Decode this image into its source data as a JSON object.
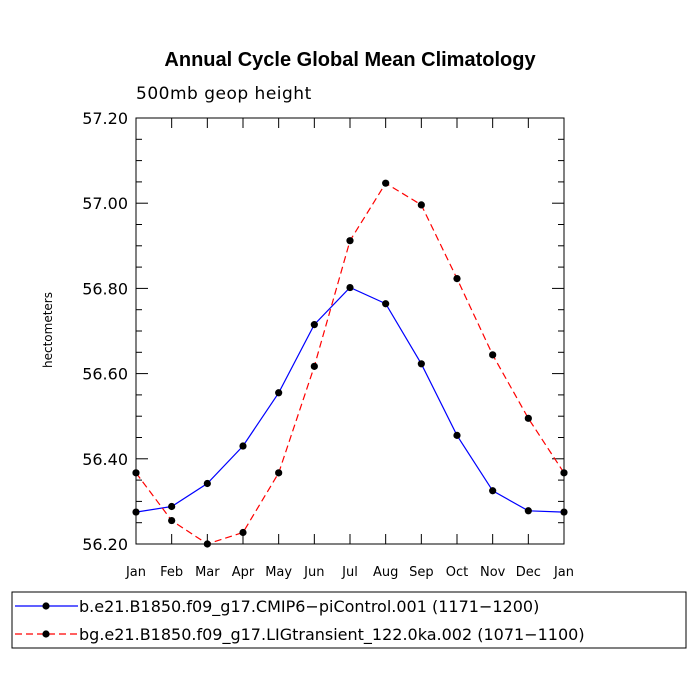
{
  "chart_data": {
    "type": "line",
    "title": "Annual Cycle Global Mean Climatology",
    "subtitle": "500mb geop height",
    "ylabel": "hectometers",
    "xlabel": "",
    "categories": [
      "Jan",
      "Feb",
      "Mar",
      "Apr",
      "May",
      "Jun",
      "Jul",
      "Aug",
      "Sep",
      "Oct",
      "Nov",
      "Dec",
      "Jan"
    ],
    "ylim": [
      56.2,
      57.2
    ],
    "yticks": [
      "56.20",
      "56.40",
      "56.60",
      "56.80",
      "57.00",
      "57.20"
    ],
    "grid": false,
    "legend_position": "bottom",
    "series": [
      {
        "name": "b.e21.B1850.f09_g17.CMIP6−piControl.001 (1171−1200)",
        "color": "#0000ff",
        "style": "solid",
        "values": [
          56.275,
          56.288,
          56.342,
          56.43,
          56.555,
          56.715,
          56.802,
          56.764,
          56.623,
          56.455,
          56.325,
          56.278,
          56.275
        ]
      },
      {
        "name": "bg.e21.B1850.f09_g17.LIGtransient_122.0ka.002 (1071−1100)",
        "color": "#ff0000",
        "style": "dashed",
        "values": [
          56.367,
          56.255,
          56.2,
          56.227,
          56.367,
          56.617,
          56.912,
          57.047,
          56.996,
          56.823,
          56.644,
          56.495,
          56.367
        ]
      }
    ]
  }
}
